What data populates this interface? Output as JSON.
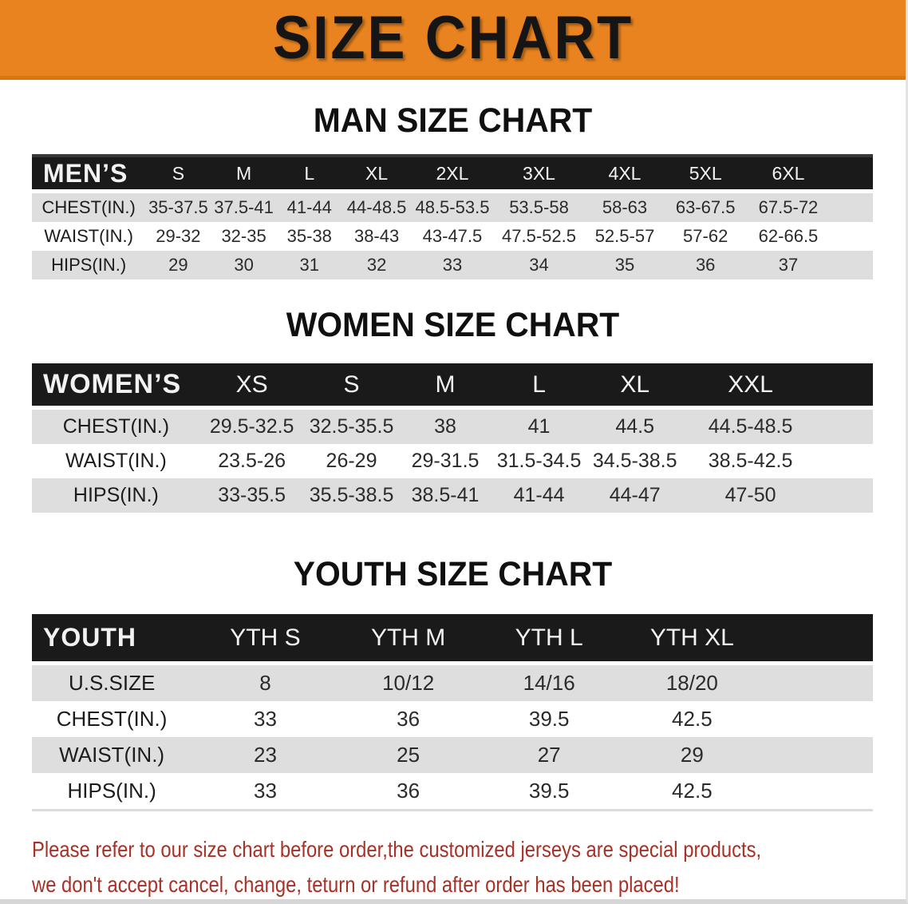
{
  "banner": {
    "title": "SIZE CHART"
  },
  "colors": {
    "banner_bg": "#E8831F",
    "banner_edge": "#D9770F",
    "band_bg": "#1A1A1A",
    "row_alt_bg": "#DEDEDE",
    "note_color": "#A93026"
  },
  "sections": [
    {
      "id": "men",
      "heading": "MAN SIZE CHART",
      "group_label": "MEN’S",
      "size_headers": [
        "S",
        "M",
        "L",
        "XL",
        "2XL",
        "3XL",
        "4XL",
        "5XL",
        "6XL"
      ],
      "rows": [
        {
          "label": "CHEST(IN.)",
          "values": [
            "35-37.5",
            "37.5-41",
            "41-44",
            "44-48.5",
            "48.5-53.5",
            "53.5-58",
            "58-63",
            "63-67.5",
            "67.5-72"
          ]
        },
        {
          "label": "WAIST(IN.)",
          "values": [
            "29-32",
            "32-35",
            "35-38",
            "38-43",
            "43-47.5",
            "47.5-52.5",
            "52.5-57",
            "57-62",
            "62-66.5"
          ]
        },
        {
          "label": "HIPS(IN.)",
          "values": [
            "29",
            "30",
            "31",
            "32",
            "33",
            "34",
            "35",
            "36",
            "37"
          ]
        }
      ]
    },
    {
      "id": "women",
      "heading": "WOMEN SIZE CHART",
      "group_label": "WOMEN’S",
      "size_headers": [
        "XS",
        "S",
        "M",
        "L",
        "XL",
        "XXL"
      ],
      "rows": [
        {
          "label": "CHEST(IN.)",
          "values": [
            "29.5-32.5",
            "32.5-35.5",
            "38",
            "41",
            "44.5",
            "44.5-48.5"
          ]
        },
        {
          "label": "WAIST(IN.)",
          "values": [
            "23.5-26",
            "26-29",
            "29-31.5",
            "31.5-34.5",
            "34.5-38.5",
            "38.5-42.5"
          ]
        },
        {
          "label": "HIPS(IN.)",
          "values": [
            "33-35.5",
            "35.5-38.5",
            "38.5-41",
            "41-44",
            "44-47",
            "47-50"
          ]
        }
      ]
    },
    {
      "id": "youth",
      "heading": "YOUTH SIZE CHART",
      "group_label": "YOUTH",
      "size_headers": [
        "YTH S",
        "YTH M",
        "YTH L",
        "YTH XL"
      ],
      "rows": [
        {
          "label": "U.S.SIZE",
          "values": [
            "8",
            "10/12",
            "14/16",
            "18/20"
          ]
        },
        {
          "label": "CHEST(IN.)",
          "values": [
            "33",
            "36",
            "39.5",
            "42.5"
          ]
        },
        {
          "label": "WAIST(IN.)",
          "values": [
            "23",
            "25",
            "27",
            "29"
          ]
        },
        {
          "label": "HIPS(IN.)",
          "values": [
            "33",
            "36",
            "39.5",
            "42.5"
          ]
        }
      ]
    }
  ],
  "footnote": {
    "line1": "Please refer to our size chart before order,the customized jerseys are special products,",
    "line2": "we don't accept cancel, change, teturn or refund after order has been placed!"
  }
}
